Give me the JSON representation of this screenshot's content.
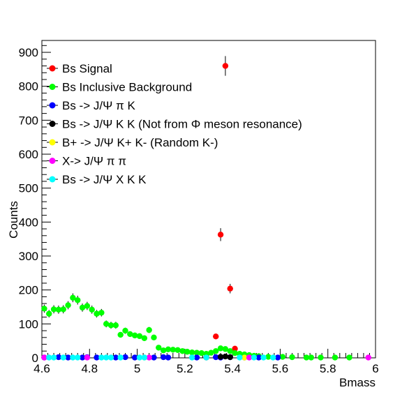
{
  "chart_data": {
    "type": "scatter",
    "title": "",
    "xlabel": "Bmass",
    "ylabel": "Counts",
    "xlim": [
      4.6,
      6.0
    ],
    "ylim": [
      0,
      935
    ],
    "x_ticks": [
      "4.6",
      "4.8",
      "5",
      "5.2",
      "5.4",
      "5.6",
      "5.8",
      "6"
    ],
    "y_ticks": [
      "0",
      "100",
      "200",
      "300",
      "400",
      "500",
      "600",
      "700",
      "800",
      "900"
    ],
    "legend_position": "upper-left",
    "series": [
      {
        "name": "Bs Signal",
        "color": "#ff0000",
        "points": [
          {
            "x": 5.33,
            "y": 63,
            "err": 8
          },
          {
            "x": 5.35,
            "y": 363,
            "err": 19
          },
          {
            "x": 5.37,
            "y": 860,
            "err": 29
          },
          {
            "x": 5.39,
            "y": 204,
            "err": 14
          },
          {
            "x": 5.41,
            "y": 27,
            "err": 5
          },
          {
            "x": 5.29,
            "y": 1,
            "err": 1
          },
          {
            "x": 5.45,
            "y": 2,
            "err": 1
          }
        ]
      },
      {
        "name": "Bs Inclusive Background",
        "color": "#00ff00",
        "points": [
          {
            "x": 4.61,
            "y": 145,
            "err": 12
          },
          {
            "x": 4.63,
            "y": 130,
            "err": 11
          },
          {
            "x": 4.65,
            "y": 143,
            "err": 12
          },
          {
            "x": 4.67,
            "y": 142,
            "err": 12
          },
          {
            "x": 4.69,
            "y": 143,
            "err": 12
          },
          {
            "x": 4.71,
            "y": 155,
            "err": 12
          },
          {
            "x": 4.73,
            "y": 177,
            "err": 13
          },
          {
            "x": 4.75,
            "y": 170,
            "err": 13
          },
          {
            "x": 4.77,
            "y": 148,
            "err": 12
          },
          {
            "x": 4.79,
            "y": 153,
            "err": 12
          },
          {
            "x": 4.81,
            "y": 142,
            "err": 12
          },
          {
            "x": 4.83,
            "y": 130,
            "err": 11
          },
          {
            "x": 4.85,
            "y": 133,
            "err": 11
          },
          {
            "x": 4.87,
            "y": 100,
            "err": 10
          },
          {
            "x": 4.89,
            "y": 96,
            "err": 10
          },
          {
            "x": 4.91,
            "y": 96,
            "err": 10
          },
          {
            "x": 4.93,
            "y": 68,
            "err": 8
          },
          {
            "x": 4.95,
            "y": 80,
            "err": 9
          },
          {
            "x": 4.97,
            "y": 70,
            "err": 8
          },
          {
            "x": 4.99,
            "y": 66,
            "err": 8
          },
          {
            "x": 5.01,
            "y": 64,
            "err": 8
          },
          {
            "x": 5.03,
            "y": 58,
            "err": 8
          },
          {
            "x": 5.05,
            "y": 82,
            "err": 9
          },
          {
            "x": 5.07,
            "y": 60,
            "err": 8
          },
          {
            "x": 5.09,
            "y": 30,
            "err": 5
          },
          {
            "x": 5.11,
            "y": 22,
            "err": 5
          },
          {
            "x": 5.13,
            "y": 25,
            "err": 5
          },
          {
            "x": 5.15,
            "y": 24,
            "err": 5
          },
          {
            "x": 5.17,
            "y": 23,
            "err": 5
          },
          {
            "x": 5.19,
            "y": 20,
            "err": 4
          },
          {
            "x": 5.21,
            "y": 18,
            "err": 4
          },
          {
            "x": 5.23,
            "y": 16,
            "err": 4
          },
          {
            "x": 5.25,
            "y": 15,
            "err": 4
          },
          {
            "x": 5.27,
            "y": 14,
            "err": 4
          },
          {
            "x": 5.29,
            "y": 12,
            "err": 3
          },
          {
            "x": 5.31,
            "y": 15,
            "err": 4
          },
          {
            "x": 5.33,
            "y": 20,
            "err": 4
          },
          {
            "x": 5.35,
            "y": 28,
            "err": 5
          },
          {
            "x": 5.37,
            "y": 26,
            "err": 5
          },
          {
            "x": 5.39,
            "y": 20,
            "err": 4
          },
          {
            "x": 5.41,
            "y": 14,
            "err": 4
          },
          {
            "x": 5.43,
            "y": 12,
            "err": 3
          },
          {
            "x": 5.45,
            "y": 10,
            "err": 3
          },
          {
            "x": 5.47,
            "y": 8,
            "err": 3
          },
          {
            "x": 5.49,
            "y": 6,
            "err": 2
          },
          {
            "x": 5.51,
            "y": 5,
            "err": 2
          },
          {
            "x": 5.55,
            "y": 3,
            "err": 2
          },
          {
            "x": 5.61,
            "y": 3,
            "err": 2
          },
          {
            "x": 5.65,
            "y": 2,
            "err": 1
          },
          {
            "x": 5.71,
            "y": 1,
            "err": 1
          },
          {
            "x": 5.73,
            "y": 1,
            "err": 1
          },
          {
            "x": 5.77,
            "y": 1,
            "err": 1
          },
          {
            "x": 5.83,
            "y": 1,
            "err": 1
          },
          {
            "x": 5.89,
            "y": 1,
            "err": 1
          }
        ]
      },
      {
        "name": "Bs -> J/Ψ  π K",
        "color": "#0000ff",
        "points": [
          {
            "x": 4.61,
            "y": 1
          },
          {
            "x": 4.67,
            "y": 2
          },
          {
            "x": 4.71,
            "y": 1
          },
          {
            "x": 4.77,
            "y": 1
          },
          {
            "x": 4.79,
            "y": 2
          },
          {
            "x": 4.83,
            "y": 1
          },
          {
            "x": 4.91,
            "y": 1
          },
          {
            "x": 4.95,
            "y": 2
          },
          {
            "x": 4.99,
            "y": 1
          },
          {
            "x": 5.07,
            "y": 1
          },
          {
            "x": 5.11,
            "y": 2
          },
          {
            "x": 5.13,
            "y": 1
          },
          {
            "x": 5.25,
            "y": 1
          },
          {
            "x": 5.33,
            "y": 2
          },
          {
            "x": 5.35,
            "y": 1
          },
          {
            "x": 5.39,
            "y": 2
          },
          {
            "x": 5.45,
            "y": 1
          },
          {
            "x": 5.51,
            "y": 1
          },
          {
            "x": 5.59,
            "y": 1
          }
        ]
      },
      {
        "name": "Bs -> J/Ψ  K K (Not from Φ meson resonance)",
        "color": "#000000",
        "points": [
          {
            "x": 5.35,
            "y": 3
          },
          {
            "x": 5.37,
            "y": 4
          },
          {
            "x": 5.39,
            "y": 2
          }
        ]
      },
      {
        "name": "B+ ->  J/Ψ  K+ K- (Random K-)",
        "color": "#ffff00",
        "points": [
          {
            "x": 5.03,
            "y": 1
          },
          {
            "x": 5.45,
            "y": 1
          }
        ]
      },
      {
        "name": "X-> J/Ψ π π",
        "color": "#ff00ff",
        "points": [
          {
            "x": 4.61,
            "y": 1
          },
          {
            "x": 4.79,
            "y": 1
          },
          {
            "x": 5.05,
            "y": 1
          },
          {
            "x": 5.47,
            "y": 1
          },
          {
            "x": 5.97,
            "y": 1
          }
        ]
      },
      {
        "name": "Bs -> J/Ψ X K K",
        "color": "#00ffff",
        "points": [
          {
            "x": 4.63,
            "y": 1
          },
          {
            "x": 4.65,
            "y": 1
          },
          {
            "x": 4.69,
            "y": 1
          },
          {
            "x": 4.73,
            "y": 1
          },
          {
            "x": 4.75,
            "y": 1
          },
          {
            "x": 4.85,
            "y": 1
          },
          {
            "x": 4.87,
            "y": 1
          },
          {
            "x": 4.89,
            "y": 1
          },
          {
            "x": 4.93,
            "y": 1
          },
          {
            "x": 5.01,
            "y": 1
          },
          {
            "x": 5.03,
            "y": 1
          },
          {
            "x": 5.23,
            "y": 1
          },
          {
            "x": 5.29,
            "y": 1
          },
          {
            "x": 5.43,
            "y": 1
          },
          {
            "x": 5.49,
            "y": 1
          },
          {
            "x": 5.53,
            "y": 1
          },
          {
            "x": 5.57,
            "y": 1
          }
        ]
      }
    ]
  }
}
